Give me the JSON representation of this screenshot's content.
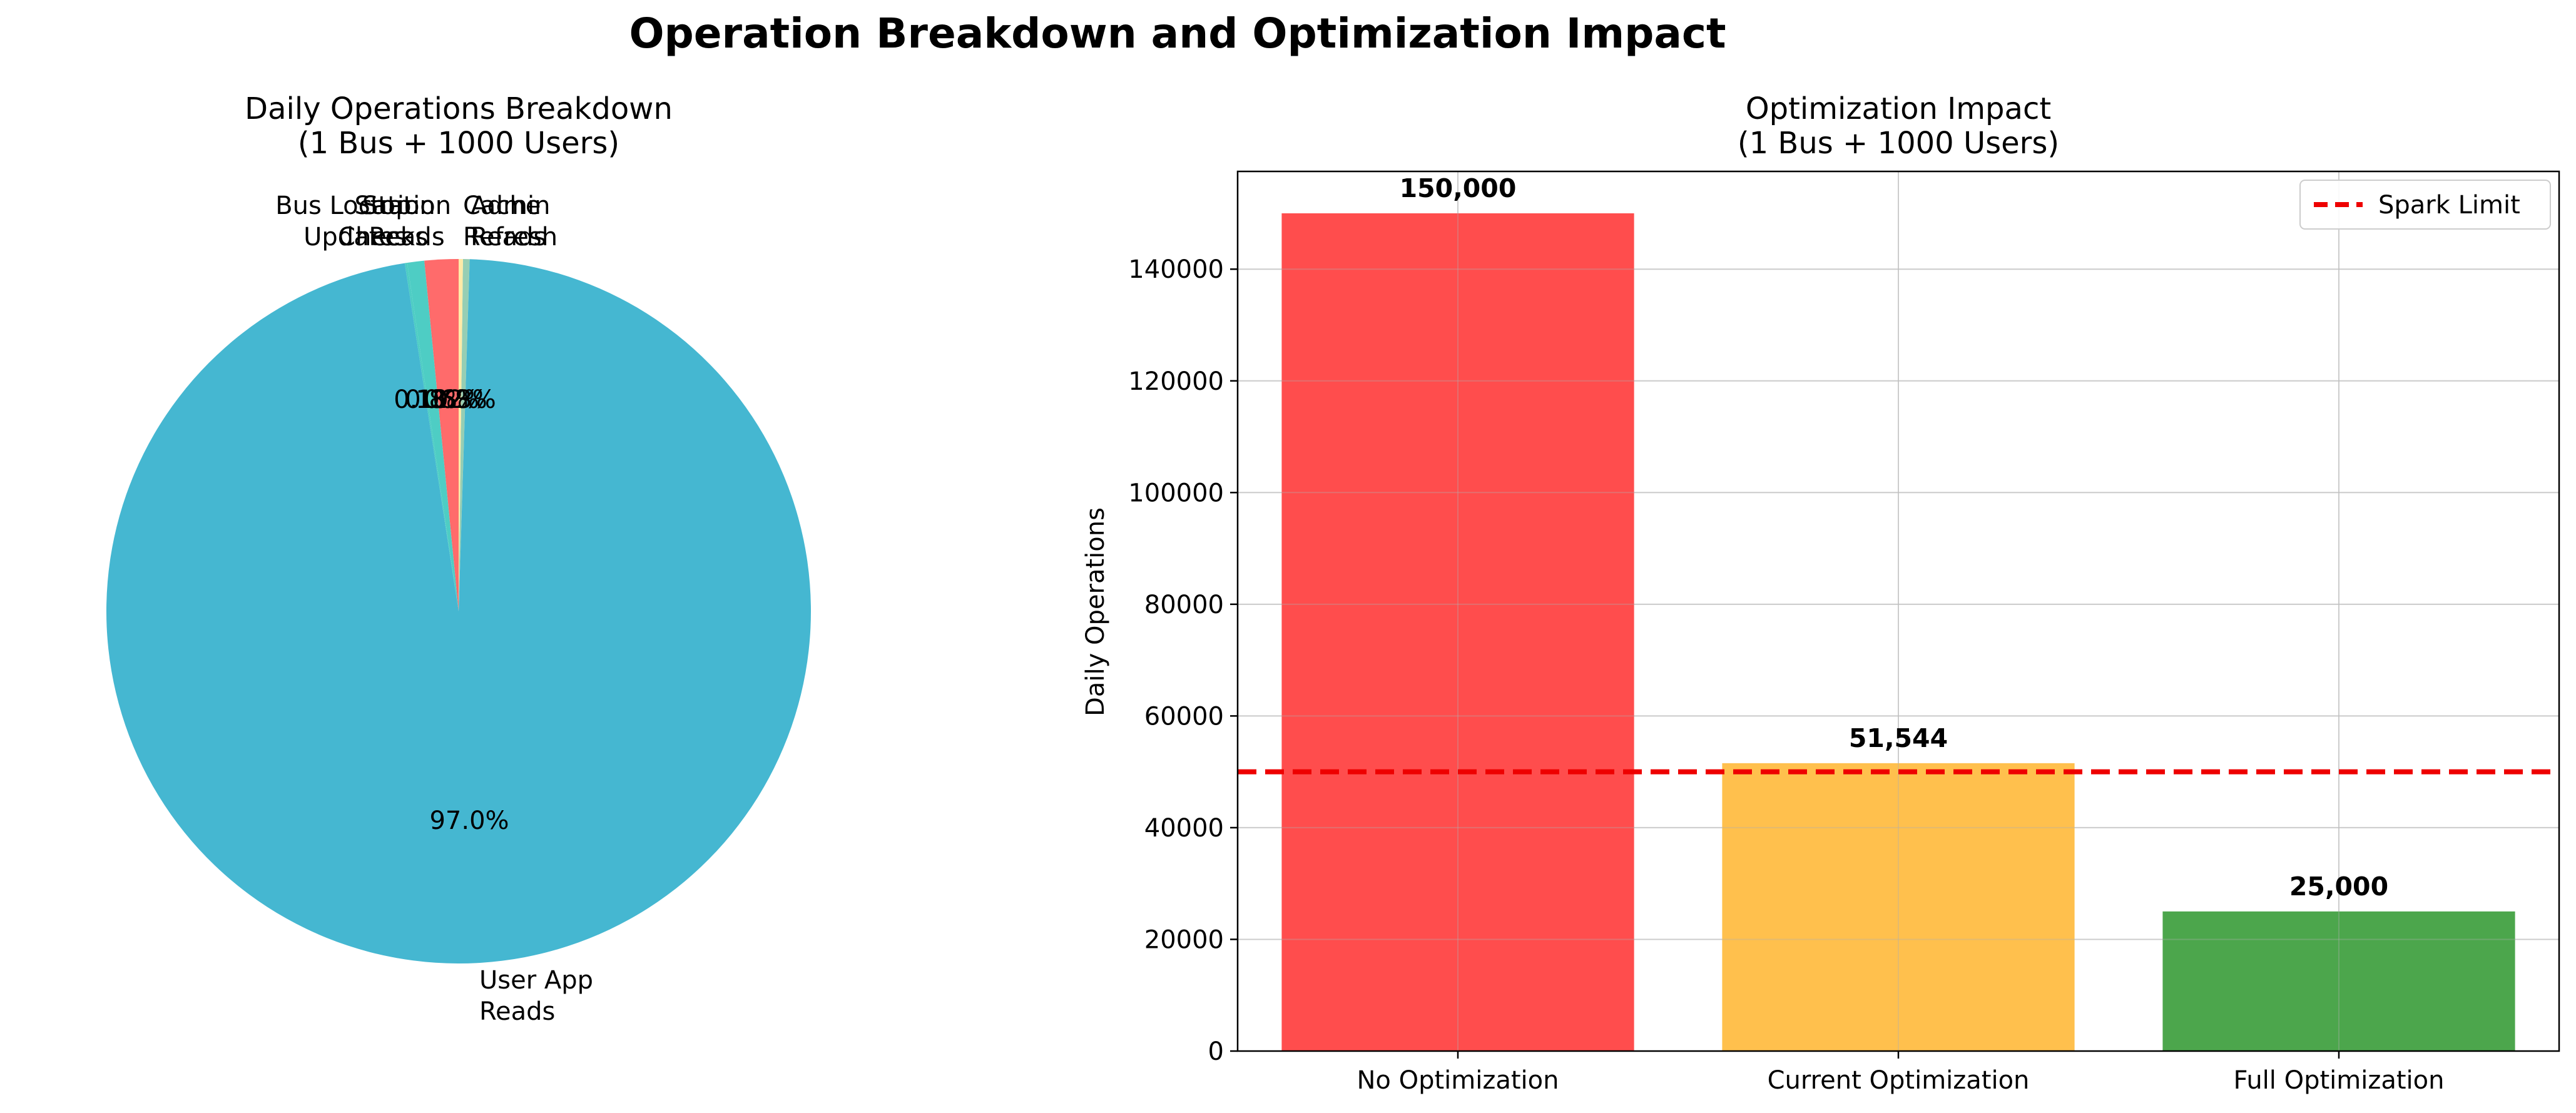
{
  "figure": {
    "title": "Operation Breakdown and Optimization Impact"
  },
  "chart_data": [
    {
      "type": "pie",
      "title": "Daily Operations Breakdown\n(1 Bus + 1000 Users)",
      "slices": [
        {
          "label": "User App\nReads",
          "pct_label": "97.0%",
          "value": 97.0,
          "color": "#45b7d1"
        },
        {
          "label": "Bus Location\nUpdates",
          "pct_label": "0.1%",
          "value": 0.1,
          "color": "#4ecdc4"
        },
        {
          "label": "Stop\nChecks",
          "pct_label": "0.8%",
          "value": 0.8,
          "color": "#4ecdc4"
        },
        {
          "label": "Station\nReads",
          "pct_label": "1.6%",
          "value": 1.6,
          "color": "#ff6b6b"
        },
        {
          "label": "Cache\nRefresh",
          "pct_label": "0.2%",
          "value": 0.2,
          "color": "#ffeaa7"
        },
        {
          "label": "Admin\nReads",
          "pct_label": "0.3%",
          "value": 0.3,
          "color": "#96ceb4"
        }
      ]
    },
    {
      "type": "bar",
      "title": "Optimization Impact\n(1 Bus + 1000 Users)",
      "categories": [
        "No Optimization",
        "Current Optimization",
        "Full Optimization"
      ],
      "values": [
        150000,
        51544,
        25000
      ],
      "value_labels": [
        "150,000",
        "51,544",
        "25,000"
      ],
      "colors": [
        "#ff4d4d",
        "#ffc04d",
        "#4ca64c"
      ],
      "xlabel": "",
      "ylabel": "Daily Operations",
      "ylim": [
        0,
        157500
      ],
      "yticks": [
        0,
        20000,
        40000,
        60000,
        80000,
        100000,
        120000,
        140000
      ],
      "grid": true,
      "reference_line": {
        "name": "Spark Limit",
        "value": 50000,
        "color": "#ee0000"
      },
      "legend": {
        "placement": "top-right",
        "entries": [
          "Spark Limit"
        ]
      }
    }
  ]
}
